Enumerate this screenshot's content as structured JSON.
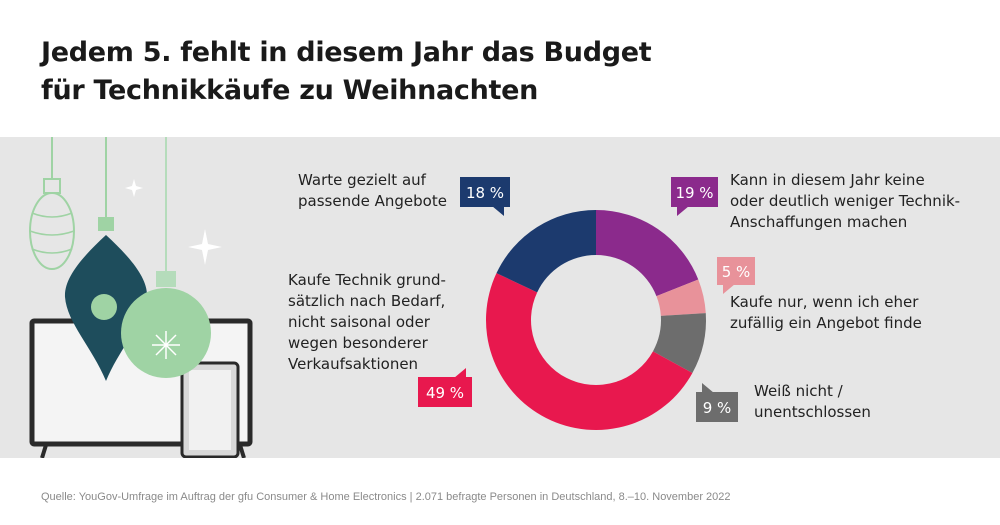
{
  "title_lines": [
    "Jedem 5. fehlt in diesem Jahr das Budget",
    "für Technikkäufe zu Weihnachten"
  ],
  "source": "Quelle: YouGov-Umfrage im Auftrag der gfu Consumer & Home Electronics | 2.071 befragte Personen in Deutschland, 8.–10. November 2022",
  "colors": {
    "panel_bg": "#e6e6e6",
    "ornament_teal": "#1e4d5c",
    "ornament_green": "#9fd3a4",
    "ornament_mint": "#b5dcbb"
  },
  "chart_data": {
    "type": "pie",
    "donut": true,
    "slices": [
      {
        "value": 19,
        "label_text": "19 %",
        "color": "#8b2a8c",
        "description": [
          "Kann in diesem Jahr keine",
          "oder deutlich weniger Technik-",
          "Anschaffungen machen"
        ]
      },
      {
        "value": 5,
        "label_text": "5 %",
        "color": "#e8929a",
        "description": [
          "Kaufe nur, wenn ich eher",
          "zufällig ein Angebot finde"
        ]
      },
      {
        "value": 9,
        "label_text": "9 %",
        "color": "#6d6d6d",
        "description": [
          "Weiß nicht /",
          "unentschlossen"
        ]
      },
      {
        "value": 49,
        "label_text": "49 %",
        "color": "#e8184e",
        "description": [
          "Kaufe Technik grund-",
          "sätzlich nach Bedarf,",
          "nicht saisonal oder",
          "wegen besonderer",
          "Verkaufsaktionen"
        ]
      },
      {
        "value": 18,
        "label_text": "18 %",
        "color": "#1c3a6e",
        "description": [
          "Warte gezielt auf",
          "passende Angebote"
        ]
      }
    ]
  }
}
